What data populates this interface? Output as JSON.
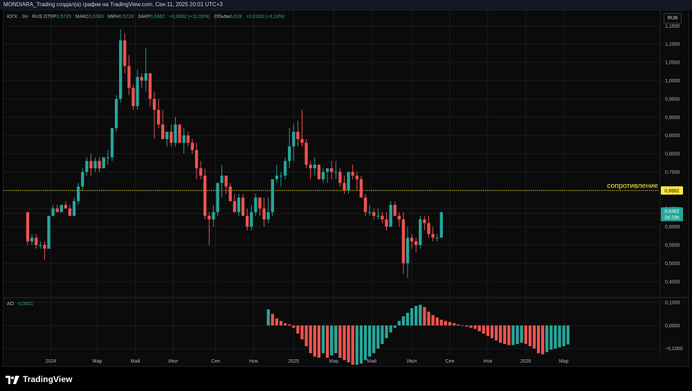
{
  "header": {
    "title": "MONDIARA_Trading создал(а) график на TradingView.com, Сен 11, 2025 20:01 UTC+3"
  },
  "legend": {
    "symbol": "ЮГК · 1Н · RUS",
    "open_label": "ОТКР",
    "open_value": "0,5729",
    "high_label": "МАКС",
    "high_value": "0,6383",
    "low_label": "МИН",
    "low_value": "0,5728",
    "close_label": "ЗАКР",
    "close_value": "0,6362",
    "change_value": "+0,0632 (+11,03%)",
    "volume_label": "Объём",
    "volume_value": "6,618",
    "volume_change": "+0,0193 (+3,13%)"
  },
  "currency_button": "RUB",
  "ao_legend": {
    "label": "AO",
    "value": "-0,0821"
  },
  "brand": {
    "name": "TradingView",
    "logo_icon": "tradingview-logo-icon"
  },
  "colors": {
    "up": "#26a69a",
    "down": "#ef5350",
    "resistance": "#ffeb3b",
    "price_tag": "#26a69a",
    "grid": "#1a1c22"
  },
  "chart_data": [
    {
      "type": "candlestick",
      "title": "ЮГК · 1Н · RUS",
      "ylim": [
        0.41,
        1.16
      ],
      "y_ticks": [
        0.45,
        0.5,
        0.55,
        0.6,
        0.65,
        0.7,
        0.75,
        0.8,
        0.85,
        0.9,
        0.95,
        1.0,
        1.05,
        1.1,
        1.15
      ],
      "y_tick_labels": [
        "0,4500",
        "0,5000",
        "0,5500",
        "0,6000",
        "0,6500",
        "0,7000",
        "0,7500",
        "0,8000",
        "0,8500",
        "0,9000",
        "0,9500",
        "1,0000",
        "1,0500",
        "1,1000",
        "1,1500"
      ],
      "x_tick_labels": [
        "2024",
        "Мар",
        "Май",
        "Июл",
        "Сен",
        "Ноя",
        "2025",
        "Мар",
        "Май",
        "Июл",
        "Сен",
        "Ноя",
        "2026",
        "Мар"
      ],
      "x_tick_index": [
        5.5,
        16.5,
        25.5,
        34.5,
        44.5,
        53.5,
        63,
        72.5,
        81.5,
        91,
        100,
        109,
        118,
        127
      ],
      "resistance": {
        "label": "сопротивление",
        "value": 0.6992,
        "value_label": "0,6992"
      },
      "last_price": {
        "value": 0.6362,
        "value_label": "0,6362",
        "countdown": "2d 23h"
      },
      "candles": [
        [
          0.64,
          0.64,
          0.55,
          0.56
        ],
        [
          0.56,
          0.58,
          0.55,
          0.57
        ],
        [
          0.57,
          0.58,
          0.54,
          0.55
        ],
        [
          0.55,
          0.56,
          0.54,
          0.55
        ],
        [
          0.55,
          0.56,
          0.51,
          0.54
        ],
        [
          0.54,
          0.63,
          0.54,
          0.63
        ],
        [
          0.63,
          0.66,
          0.63,
          0.65
        ],
        [
          0.65,
          0.66,
          0.64,
          0.64
        ],
        [
          0.64,
          0.66,
          0.64,
          0.66
        ],
        [
          0.66,
          0.67,
          0.65,
          0.65
        ],
        [
          0.65,
          0.66,
          0.63,
          0.63
        ],
        [
          0.63,
          0.68,
          0.63,
          0.67
        ],
        [
          0.67,
          0.72,
          0.66,
          0.71
        ],
        [
          0.71,
          0.76,
          0.7,
          0.75
        ],
        [
          0.75,
          0.79,
          0.74,
          0.78
        ],
        [
          0.78,
          0.8,
          0.74,
          0.76
        ],
        [
          0.76,
          0.79,
          0.75,
          0.78
        ],
        [
          0.78,
          0.79,
          0.75,
          0.76
        ],
        [
          0.76,
          0.79,
          0.76,
          0.79
        ],
        [
          0.79,
          0.81,
          0.77,
          0.79
        ],
        [
          0.79,
          0.87,
          0.78,
          0.87
        ],
        [
          0.87,
          0.96,
          0.86,
          0.95
        ],
        [
          0.95,
          1.14,
          0.94,
          1.11
        ],
        [
          1.11,
          1.13,
          1.02,
          1.04
        ],
        [
          1.04,
          1.07,
          0.96,
          0.98
        ],
        [
          0.98,
          0.99,
          0.92,
          0.93
        ],
        [
          0.93,
          1.03,
          0.92,
          1.01
        ],
        [
          1.01,
          1.02,
          0.98,
          1.0
        ],
        [
          1.0,
          1.09,
          0.97,
          1.02
        ],
        [
          1.02,
          1.02,
          0.93,
          0.95
        ],
        [
          0.95,
          0.97,
          0.84,
          0.92
        ],
        [
          0.92,
          0.95,
          0.87,
          0.88
        ],
        [
          0.88,
          0.92,
          0.84,
          0.84
        ],
        [
          0.84,
          0.86,
          0.82,
          0.86
        ],
        [
          0.86,
          0.88,
          0.82,
          0.83
        ],
        [
          0.83,
          0.9,
          0.82,
          0.88
        ],
        [
          0.88,
          0.88,
          0.83,
          0.83
        ],
        [
          0.83,
          0.87,
          0.8,
          0.85
        ],
        [
          0.85,
          0.86,
          0.82,
          0.83
        ],
        [
          0.83,
          0.84,
          0.8,
          0.81
        ],
        [
          0.81,
          0.83,
          0.73,
          0.76
        ],
        [
          0.76,
          0.78,
          0.73,
          0.74
        ],
        [
          0.74,
          0.76,
          0.62,
          0.63
        ],
        [
          0.63,
          0.64,
          0.55,
          0.62
        ],
        [
          0.62,
          0.66,
          0.6,
          0.64
        ],
        [
          0.64,
          0.72,
          0.63,
          0.72
        ],
        [
          0.72,
          0.77,
          0.68,
          0.74
        ],
        [
          0.74,
          0.74,
          0.69,
          0.71
        ],
        [
          0.71,
          0.72,
          0.67,
          0.67
        ],
        [
          0.67,
          0.69,
          0.64,
          0.64
        ],
        [
          0.64,
          0.69,
          0.63,
          0.68
        ],
        [
          0.68,
          0.69,
          0.63,
          0.63
        ],
        [
          0.63,
          0.65,
          0.59,
          0.6
        ],
        [
          0.6,
          0.66,
          0.59,
          0.64
        ],
        [
          0.64,
          0.69,
          0.63,
          0.68
        ],
        [
          0.68,
          0.68,
          0.63,
          0.65
        ],
        [
          0.65,
          0.68,
          0.6,
          0.62
        ],
        [
          0.62,
          0.68,
          0.61,
          0.64
        ],
        [
          0.64,
          0.73,
          0.63,
          0.73
        ],
        [
          0.73,
          0.77,
          0.72,
          0.74
        ],
        [
          0.74,
          0.75,
          0.71,
          0.74
        ],
        [
          0.74,
          0.79,
          0.73,
          0.78
        ],
        [
          0.78,
          0.87,
          0.76,
          0.82
        ],
        [
          0.82,
          0.88,
          0.78,
          0.86
        ],
        [
          0.86,
          0.89,
          0.82,
          0.84
        ],
        [
          0.84,
          0.92,
          0.82,
          0.83
        ],
        [
          0.83,
          0.84,
          0.76,
          0.77
        ],
        [
          0.77,
          0.78,
          0.73,
          0.76
        ],
        [
          0.76,
          0.79,
          0.74,
          0.77
        ],
        [
          0.77,
          0.77,
          0.73,
          0.73
        ],
        [
          0.73,
          0.76,
          0.72,
          0.75
        ],
        [
          0.75,
          0.76,
          0.72,
          0.76
        ],
        [
          0.76,
          0.78,
          0.73,
          0.75
        ],
        [
          0.75,
          0.78,
          0.73,
          0.75
        ],
        [
          0.75,
          0.76,
          0.71,
          0.72
        ],
        [
          0.72,
          0.74,
          0.69,
          0.7
        ],
        [
          0.7,
          0.75,
          0.69,
          0.75
        ],
        [
          0.75,
          0.77,
          0.73,
          0.74
        ],
        [
          0.74,
          0.75,
          0.7,
          0.73
        ],
        [
          0.73,
          0.74,
          0.68,
          0.68
        ],
        [
          0.68,
          0.69,
          0.63,
          0.64
        ],
        [
          0.64,
          0.66,
          0.63,
          0.64
        ],
        [
          0.64,
          0.65,
          0.62,
          0.63
        ],
        [
          0.63,
          0.65,
          0.62,
          0.63
        ],
        [
          0.63,
          0.64,
          0.61,
          0.62
        ],
        [
          0.62,
          0.64,
          0.59,
          0.6
        ],
        [
          0.6,
          0.67,
          0.6,
          0.66
        ],
        [
          0.66,
          0.67,
          0.63,
          0.63
        ],
        [
          0.63,
          0.64,
          0.6,
          0.62
        ],
        [
          0.62,
          0.64,
          0.47,
          0.5
        ],
        [
          0.5,
          0.6,
          0.46,
          0.57
        ],
        [
          0.57,
          0.58,
          0.54,
          0.56
        ],
        [
          0.56,
          0.57,
          0.53,
          0.55
        ],
        [
          0.55,
          0.63,
          0.54,
          0.62
        ],
        [
          0.62,
          0.63,
          0.59,
          0.61
        ],
        [
          0.61,
          0.63,
          0.57,
          0.58
        ],
        [
          0.58,
          0.6,
          0.56,
          0.57
        ],
        [
          0.57,
          0.58,
          0.56,
          0.57
        ],
        [
          0.57,
          0.64,
          0.57,
          0.64
        ]
      ]
    },
    {
      "type": "bar",
      "title": "AO",
      "ylim": [
        -0.125,
        0.115
      ],
      "y_ticks": [
        -0.1,
        0.0,
        0.1
      ],
      "y_tick_labels": [
        "−0,1000",
        "0,0000",
        "0,1000"
      ],
      "start_index": 57,
      "values": [
        0.07,
        0.05,
        0.03,
        0.02,
        0.01,
        0.005,
        -0.01,
        -0.035,
        -0.06,
        -0.09,
        -0.12,
        -0.135,
        -0.14,
        -0.12,
        -0.14,
        -0.13,
        -0.12,
        -0.14,
        -0.15,
        -0.16,
        -0.17,
        -0.17,
        -0.165,
        -0.15,
        -0.135,
        -0.12,
        -0.1,
        -0.08,
        -0.055,
        -0.03,
        -0.01,
        0.02,
        0.04,
        0.055,
        0.075,
        0.085,
        0.09,
        0.08,
        0.06,
        0.045,
        0.035,
        0.025,
        0.02,
        0.015,
        0.01,
        0.005,
        0.0,
        -0.005,
        -0.01,
        -0.015,
        -0.025,
        -0.035,
        -0.045,
        -0.055,
        -0.065,
        -0.075,
        -0.08,
        -0.085,
        -0.085,
        -0.08,
        -0.075,
        -0.08,
        -0.09,
        -0.1,
        -0.12,
        -0.125,
        -0.115,
        -0.105,
        -0.1,
        -0.095,
        -0.09,
        -0.0821
      ]
    }
  ]
}
